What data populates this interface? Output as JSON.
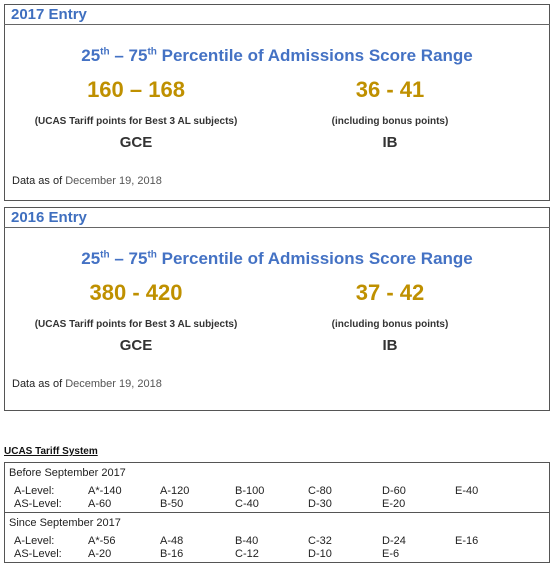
{
  "sections": [
    {
      "header": "2017 Entry",
      "title": [
        "25",
        "th",
        " – 75",
        "th",
        " Percentile of Admissions Score Range"
      ],
      "columns": [
        {
          "range": "160 – 168",
          "note": "(UCAS Tariff points for Best 3 AL subjects)",
          "label": "GCE"
        },
        {
          "range": "36 - 41",
          "note": "(including bonus points)",
          "label": "IB"
        }
      ],
      "as_of_label": "Data as of",
      "as_of_date": "December 19, 2018"
    },
    {
      "header": "2016 Entry",
      "title": [
        "25",
        "th",
        " – 75",
        "th",
        " Percentile of Admissions Score Range"
      ],
      "columns": [
        {
          "range": "380 - 420",
          "note": "(UCAS Tariff points for Best 3 AL subjects)",
          "label": "GCE"
        },
        {
          "range": "37 - 42",
          "note": "(including bonus points)",
          "label": "IB"
        }
      ],
      "as_of_label": "Data as of",
      "as_of_date": "December 19, 2018"
    }
  ],
  "tariff": {
    "title": "UCAS Tariff System",
    "groups": [
      {
        "heading": "Before September 2017",
        "rows": [
          {
            "label": "A-Level:",
            "grades": [
              "A*-140",
              "A-120",
              "B-100",
              "C-80",
              "D-60",
              "E-40"
            ]
          },
          {
            "label": "AS-Level:",
            "grades": [
              "A-60",
              "B-50",
              "C-40",
              "D-30",
              "E-20"
            ]
          }
        ]
      },
      {
        "heading": "Since September 2017",
        "rows": [
          {
            "label": "A-Level:",
            "grades": [
              "A*-56",
              "A-48",
              "B-40",
              "C-32",
              "D-24",
              "E-16"
            ]
          },
          {
            "label": "AS-Level:",
            "grades": [
              "A-20",
              "B-16",
              "C-12",
              "D-10",
              "E-6"
            ]
          }
        ]
      }
    ]
  }
}
